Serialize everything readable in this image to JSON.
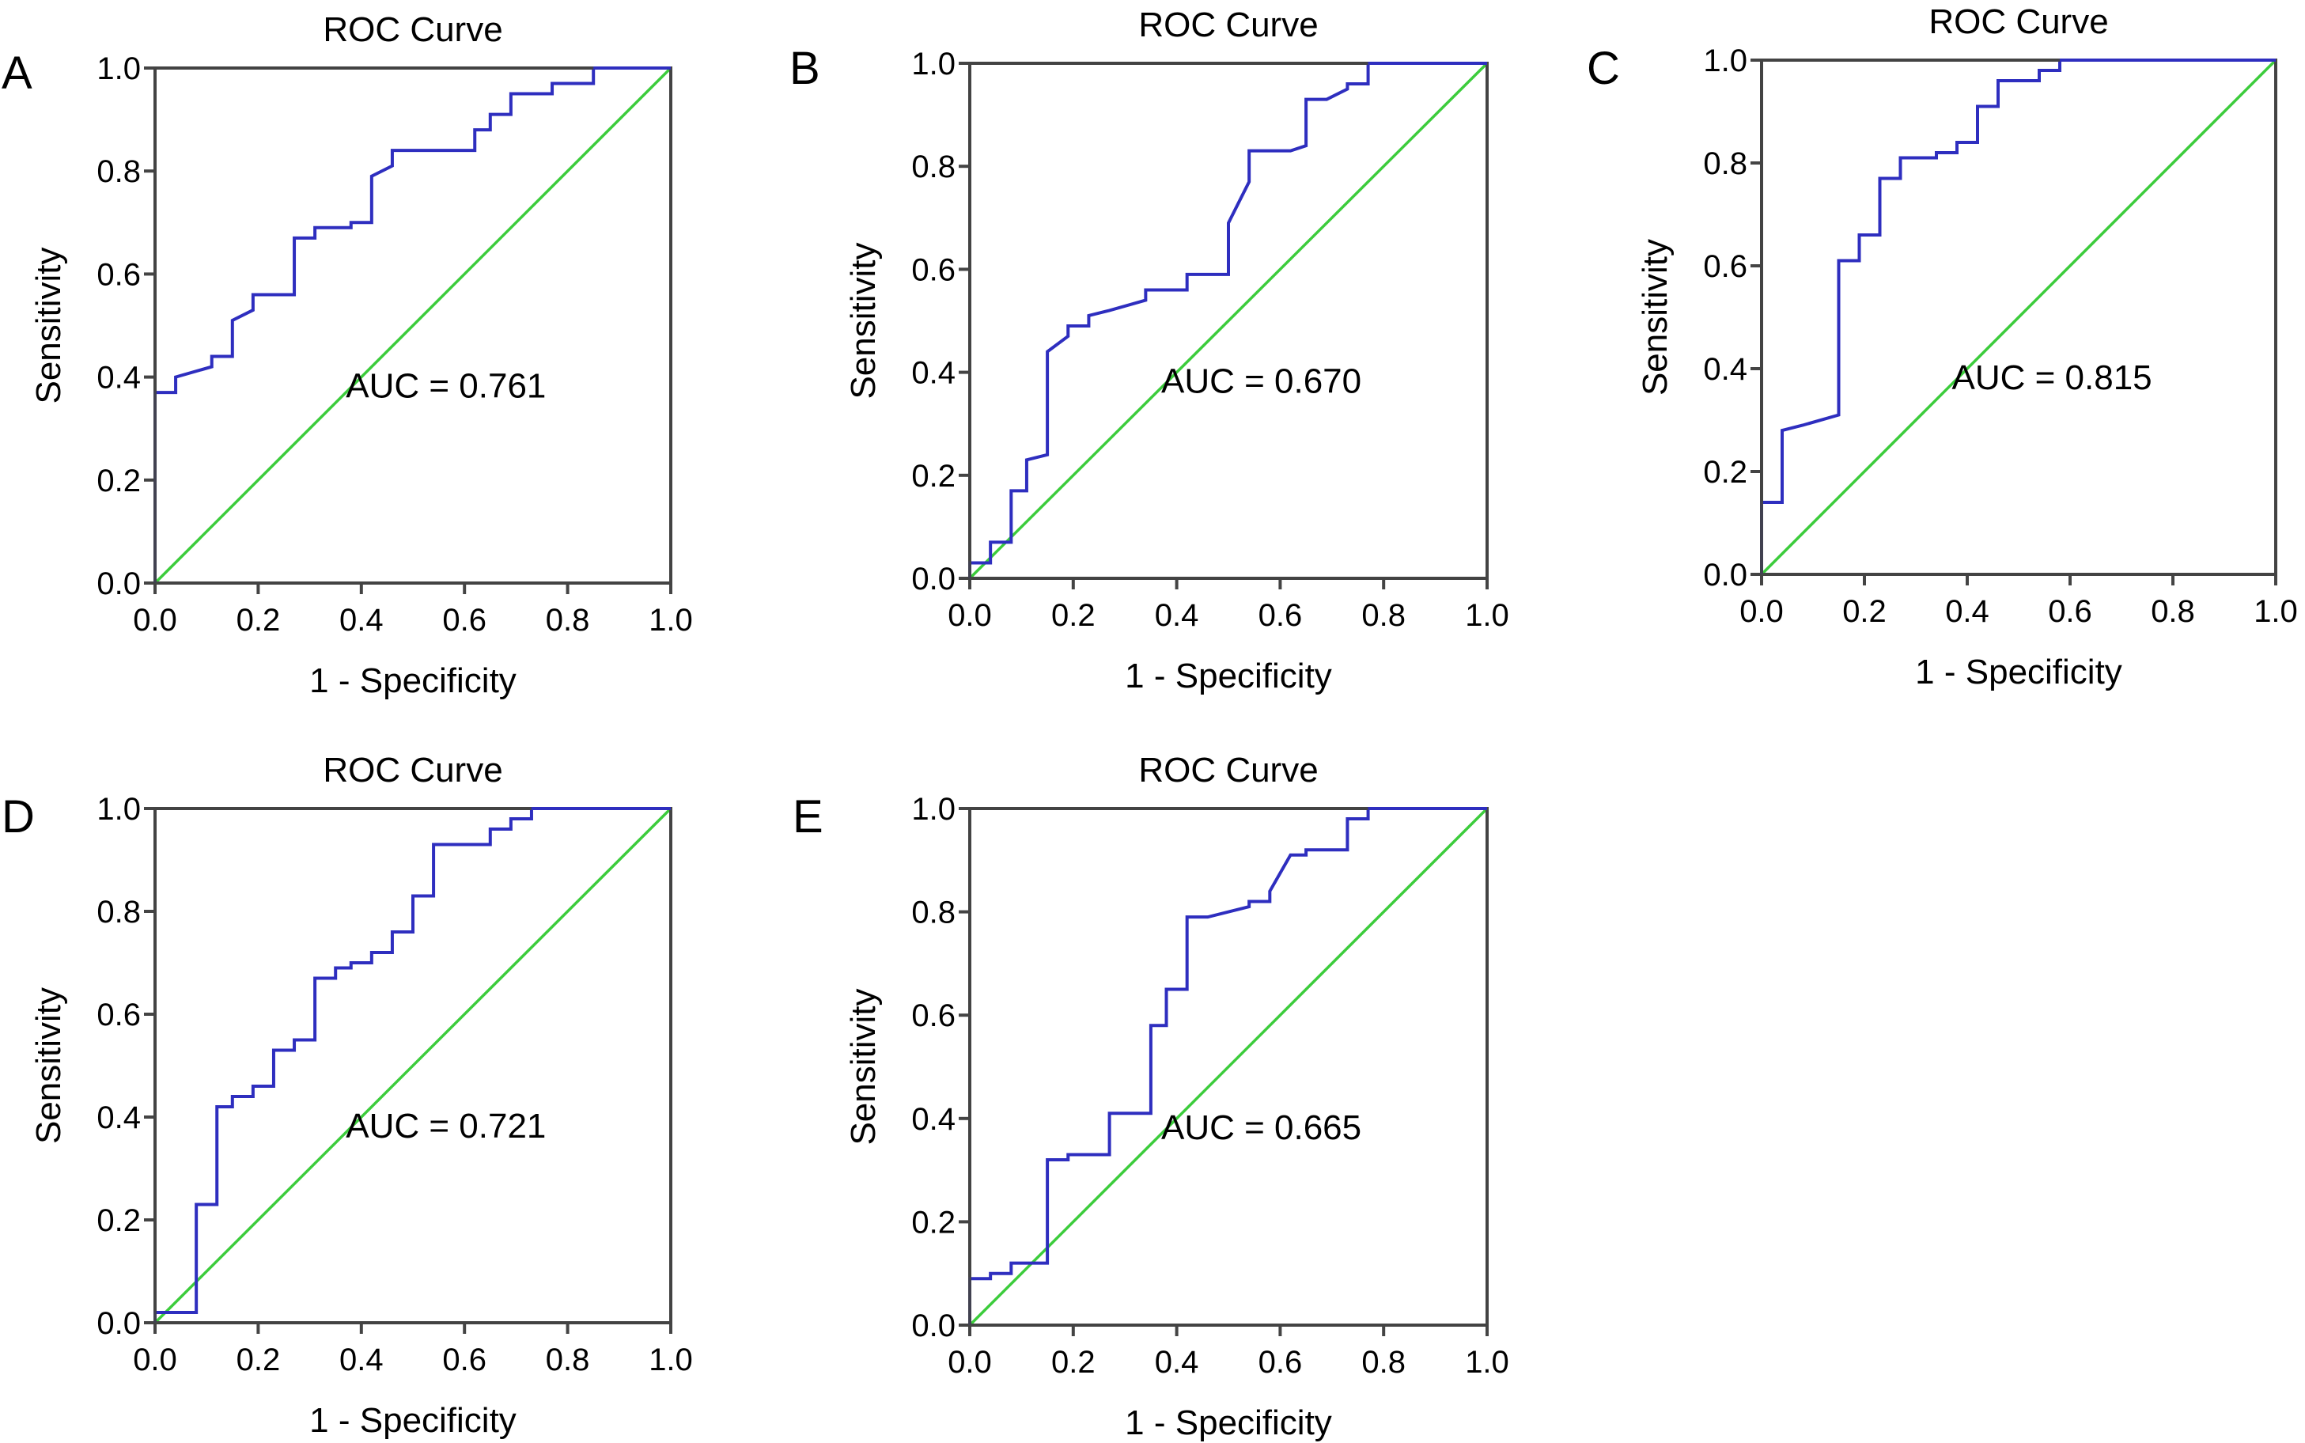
{
  "figure": {
    "colors": {
      "roc_curve": "#2e2ebf",
      "reference_line": "#3ccc3c",
      "axis": "#444444",
      "background": "#ffffff"
    }
  },
  "chart_data": [
    {
      "panel": "A",
      "type": "line",
      "title": "ROC Curve",
      "xlabel": "1 - Specificity",
      "ylabel": "Sensitivity",
      "xlim": [
        0,
        1
      ],
      "ylim": [
        0,
        1
      ],
      "xticks": [
        "0.0",
        "0.2",
        "0.4",
        "0.6",
        "0.8",
        "1.0"
      ],
      "yticks": [
        "0.0",
        "0.2",
        "0.4",
        "0.6",
        "0.8",
        "1.0"
      ],
      "grid": false,
      "annotation": "AUC = 0.761",
      "auc": 0.761,
      "series": [
        {
          "name": "ROC curve",
          "x": [
            0,
            0,
            0.04,
            0.04,
            0.11,
            0.11,
            0.15,
            0.15,
            0.19,
            0.19,
            0.27,
            0.27,
            0.31,
            0.31,
            0.38,
            0.38,
            0.42,
            0.42,
            0.46,
            0.46,
            0.62,
            0.62,
            0.65,
            0.65,
            0.69,
            0.69,
            0.77,
            0.77,
            0.85,
            0.85,
            1
          ],
          "y": [
            0,
            0.37,
            0.37,
            0.4,
            0.42,
            0.44,
            0.44,
            0.51,
            0.53,
            0.56,
            0.56,
            0.67,
            0.67,
            0.69,
            0.69,
            0.7,
            0.7,
            0.79,
            0.81,
            0.84,
            0.84,
            0.88,
            0.88,
            0.91,
            0.91,
            0.95,
            0.95,
            0.97,
            0.97,
            1.0,
            1.0
          ]
        },
        {
          "name": "Reference line",
          "x": [
            0,
            1
          ],
          "y": [
            0,
            1
          ]
        }
      ]
    },
    {
      "panel": "B",
      "type": "line",
      "title": "ROC Curve",
      "xlabel": "1 - Specificity",
      "ylabel": "Sensitivity",
      "xlim": [
        0,
        1
      ],
      "ylim": [
        0,
        1
      ],
      "xticks": [
        "0.0",
        "0.2",
        "0.4",
        "0.6",
        "0.8",
        "1.0"
      ],
      "yticks": [
        "0.0",
        "0.2",
        "0.4",
        "0.6",
        "0.8",
        "1.0"
      ],
      "grid": false,
      "annotation": "AUC = 0.670",
      "auc": 0.67,
      "series": [
        {
          "name": "ROC curve",
          "x": [
            0,
            0,
            0.04,
            0.04,
            0.08,
            0.08,
            0.11,
            0.11,
            0.15,
            0.15,
            0.19,
            0.19,
            0.23,
            0.23,
            0.27,
            0.34,
            0.34,
            0.42,
            0.42,
            0.5,
            0.5,
            0.54,
            0.54,
            0.62,
            0.65,
            0.65,
            0.69,
            0.73,
            0.73,
            0.77,
            0.77,
            1
          ],
          "y": [
            0,
            0.03,
            0.03,
            0.07,
            0.07,
            0.17,
            0.17,
            0.23,
            0.24,
            0.44,
            0.47,
            0.49,
            0.49,
            0.51,
            0.52,
            0.54,
            0.56,
            0.56,
            0.59,
            0.59,
            0.69,
            0.77,
            0.83,
            0.83,
            0.84,
            0.93,
            0.93,
            0.95,
            0.96,
            0.96,
            1.0,
            1.0
          ]
        },
        {
          "name": "Reference line",
          "x": [
            0,
            1
          ],
          "y": [
            0,
            1
          ]
        }
      ]
    },
    {
      "panel": "C",
      "type": "line",
      "title": "ROC Curve",
      "xlabel": "1 - Specificity",
      "ylabel": "Sensitivity",
      "xlim": [
        0,
        1
      ],
      "ylim": [
        0,
        1
      ],
      "xticks": [
        "0.0",
        "0.2",
        "0.4",
        "0.6",
        "0.8",
        "1.0"
      ],
      "yticks": [
        "0.0",
        "0.2",
        "0.4",
        "0.6",
        "0.8",
        "1.0"
      ],
      "grid": false,
      "annotation": "AUC = 0.815",
      "auc": 0.815,
      "series": [
        {
          "name": "ROC curve",
          "x": [
            0,
            0,
            0.04,
            0.04,
            0.08,
            0.15,
            0.15,
            0.19,
            0.19,
            0.23,
            0.23,
            0.27,
            0.27,
            0.34,
            0.34,
            0.38,
            0.38,
            0.42,
            0.42,
            0.46,
            0.46,
            0.54,
            0.54,
            0.58,
            0.58,
            1
          ],
          "y": [
            0,
            0.14,
            0.14,
            0.28,
            0.29,
            0.31,
            0.61,
            0.61,
            0.66,
            0.66,
            0.77,
            0.77,
            0.81,
            0.81,
            0.82,
            0.82,
            0.84,
            0.84,
            0.91,
            0.91,
            0.96,
            0.96,
            0.98,
            0.98,
            1.0,
            1.0
          ]
        },
        {
          "name": "Reference line",
          "x": [
            0,
            1
          ],
          "y": [
            0,
            1
          ]
        }
      ]
    },
    {
      "panel": "D",
      "type": "line",
      "title": "ROC Curve",
      "xlabel": "1 - Specificity",
      "ylabel": "Sensitivity",
      "xlim": [
        0,
        1
      ],
      "ylim": [
        0,
        1
      ],
      "xticks": [
        "0.0",
        "0.2",
        "0.4",
        "0.6",
        "0.8",
        "1.0"
      ],
      "yticks": [
        "0.0",
        "0.2",
        "0.4",
        "0.6",
        "0.8",
        "1.0"
      ],
      "grid": false,
      "annotation": "AUC = 0.721",
      "auc": 0.721,
      "series": [
        {
          "name": "ROC curve",
          "x": [
            0,
            0,
            0.08,
            0.08,
            0.12,
            0.12,
            0.15,
            0.15,
            0.19,
            0.19,
            0.23,
            0.23,
            0.27,
            0.27,
            0.31,
            0.31,
            0.35,
            0.35,
            0.38,
            0.38,
            0.42,
            0.42,
            0.46,
            0.46,
            0.5,
            0.5,
            0.54,
            0.54,
            0.65,
            0.65,
            0.69,
            0.69,
            0.73,
            0.73,
            1
          ],
          "y": [
            0,
            0.02,
            0.02,
            0.23,
            0.23,
            0.42,
            0.42,
            0.44,
            0.44,
            0.46,
            0.46,
            0.53,
            0.53,
            0.55,
            0.55,
            0.67,
            0.67,
            0.69,
            0.69,
            0.7,
            0.7,
            0.72,
            0.72,
            0.76,
            0.76,
            0.83,
            0.83,
            0.93,
            0.93,
            0.96,
            0.96,
            0.98,
            0.98,
            1.0,
            1.0
          ]
        },
        {
          "name": "Reference line",
          "x": [
            0,
            1
          ],
          "y": [
            0,
            1
          ]
        }
      ]
    },
    {
      "panel": "E",
      "type": "line",
      "title": "ROC Curve",
      "xlabel": "1 - Specificity",
      "ylabel": "Sensitivity",
      "xlim": [
        0,
        1
      ],
      "ylim": [
        0,
        1
      ],
      "xticks": [
        "0.0",
        "0.2",
        "0.4",
        "0.6",
        "0.8",
        "1.0"
      ],
      "yticks": [
        "0.0",
        "0.2",
        "0.4",
        "0.6",
        "0.8",
        "1.0"
      ],
      "grid": false,
      "annotation": "AUC = 0.665",
      "auc": 0.665,
      "series": [
        {
          "name": "ROC curve",
          "x": [
            0,
            0,
            0.04,
            0.04,
            0.08,
            0.08,
            0.15,
            0.15,
            0.19,
            0.19,
            0.27,
            0.27,
            0.35,
            0.35,
            0.38,
            0.38,
            0.42,
            0.42,
            0.46,
            0.54,
            0.54,
            0.58,
            0.58,
            0.62,
            0.65,
            0.65,
            0.73,
            0.73,
            0.77,
            0.77,
            1
          ],
          "y": [
            0,
            0.09,
            0.09,
            0.1,
            0.1,
            0.12,
            0.12,
            0.32,
            0.32,
            0.33,
            0.33,
            0.41,
            0.41,
            0.58,
            0.58,
            0.65,
            0.65,
            0.79,
            0.79,
            0.81,
            0.82,
            0.82,
            0.84,
            0.91,
            0.91,
            0.92,
            0.92,
            0.98,
            0.98,
            1.0,
            1.0
          ]
        },
        {
          "name": "Reference line",
          "x": [
            0,
            1
          ],
          "y": [
            0,
            1
          ]
        }
      ]
    }
  ]
}
